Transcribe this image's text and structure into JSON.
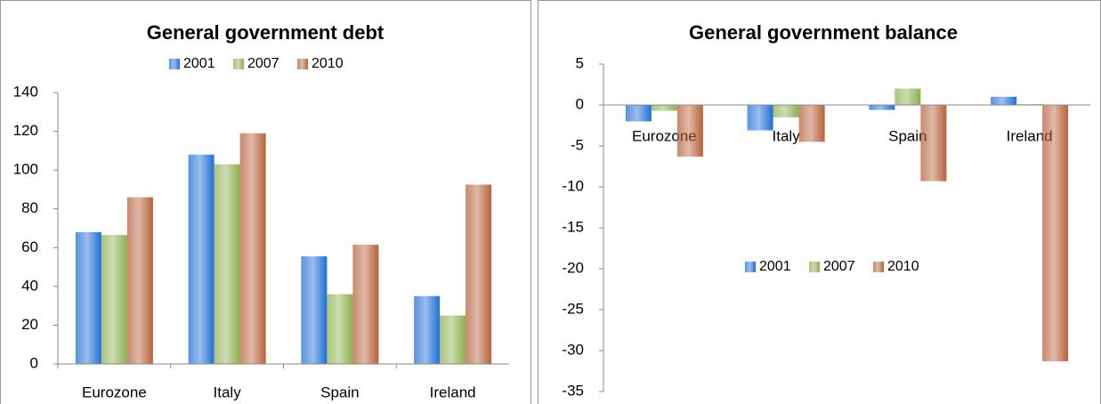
{
  "chart_data": [
    {
      "type": "bar",
      "title": "General government debt",
      "categories": [
        "Eurozone",
        "Italy",
        "Spain",
        "Ireland"
      ],
      "series": [
        {
          "name": "2001",
          "color": "#1f6fd6",
          "values": [
            68,
            108,
            55.5,
            35
          ]
        },
        {
          "name": "2007",
          "color": "#8db04f",
          "values": [
            66.5,
            103,
            36,
            25
          ]
        },
        {
          "name": "2010",
          "color": "#b8623a",
          "values": [
            86,
            119,
            61.5,
            92.5
          ]
        }
      ],
      "ylim": [
        0,
        140
      ],
      "yticks": [
        0,
        20,
        40,
        60,
        80,
        100,
        120,
        140
      ],
      "legend": "top"
    },
    {
      "type": "bar",
      "title": "General government balance",
      "categories": [
        "Eurozone",
        "Italy",
        "Spain",
        "Ireland"
      ],
      "series": [
        {
          "name": "2001",
          "color": "#1f6fd6",
          "values": [
            -2,
            -3.1,
            -0.6,
            1
          ]
        },
        {
          "name": "2007",
          "color": "#8db04f",
          "values": [
            -0.7,
            -1.5,
            2,
            0.1
          ]
        },
        {
          "name": "2010",
          "color": "#b8623a",
          "values": [
            -6.3,
            -4.5,
            -9.3,
            -31.3
          ]
        }
      ],
      "ylim": [
        -35,
        5
      ],
      "yticks": [
        -35,
        -30,
        -25,
        -20,
        -15,
        -10,
        -5,
        0,
        5
      ],
      "legend": "center"
    }
  ]
}
